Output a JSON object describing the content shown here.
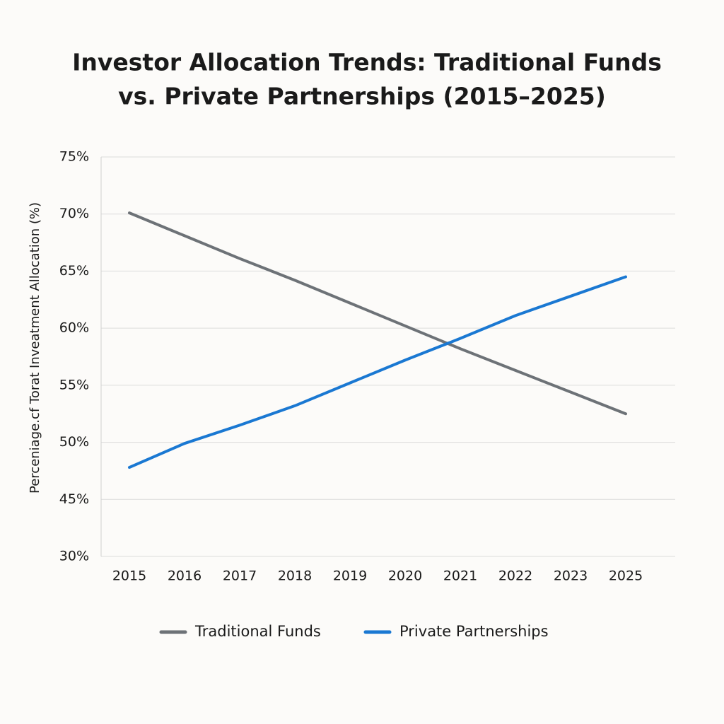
{
  "chart_data": {
    "type": "line",
    "title": [
      "Investor Allocation Trends: Traditional Funds",
      "vs. Private Partnerships (2015–2025)"
    ],
    "y_label": "Perceniage.cf Torat Inveatment Allocation (%)",
    "categories": [
      "2015",
      "2016",
      "2017",
      "2018",
      "2019",
      "2020",
      "2021",
      "2022",
      "2023",
      "2025"
    ],
    "series": [
      {
        "name": "Traditional Funds",
        "color": "#6d7277",
        "values": [
          70.1,
          68.1,
          66.1,
          64.2,
          62.2,
          60.2,
          58.2,
          56.3,
          54.4,
          52.5
        ]
      },
      {
        "name": "Private Partnerships",
        "color": "#1a78d2",
        "values": [
          47.8,
          49.9,
          51.5,
          53.2,
          55.2,
          57.2,
          59.1,
          61.1,
          62.8,
          64.5
        ]
      }
    ],
    "ylim": [
      30,
      75
    ],
    "yticks": [
      {
        "value": 75,
        "label": "75%"
      },
      {
        "value": 70,
        "label": "70%"
      },
      {
        "value": 65,
        "label": "65%"
      },
      {
        "value": 60,
        "label": "60%"
      },
      {
        "value": 55,
        "label": "55%"
      },
      {
        "value": 50,
        "label": "50%"
      },
      {
        "value": 45,
        "label": "45%"
      },
      {
        "value": 30,
        "label": "30%"
      }
    ],
    "grid": true,
    "legend": "bottom"
  }
}
